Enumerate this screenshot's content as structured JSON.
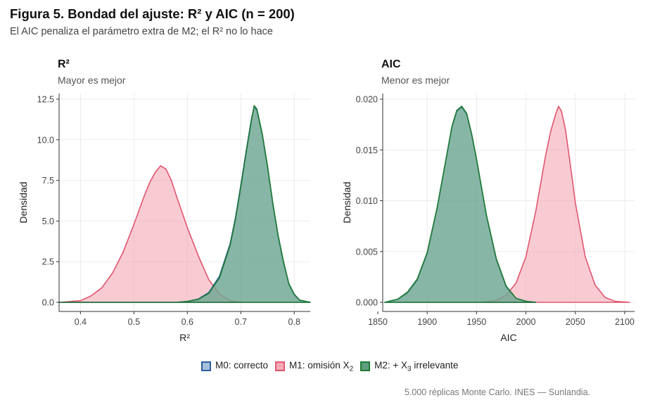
{
  "figure": {
    "title": "Figura 5. Bondad del ajuste: R² y AIC (n = 200)",
    "subtitle": "El AIC penaliza el parámetro extra de M2; el R² no lo hace",
    "caption": "5.000 réplicas Monte Carlo. INES — Sunlandia."
  },
  "legend": {
    "items": [
      {
        "key": "m0",
        "pre": "M0: correcto",
        "sub": "",
        "post": ""
      },
      {
        "key": "m1",
        "pre": "M1: omisión X",
        "sub": "2",
        "post": ""
      },
      {
        "key": "m2",
        "pre": "M2: + X",
        "sub": "3",
        "post": " irrelevante"
      }
    ]
  },
  "colors": {
    "m0": {
      "line": "#2c5f9e",
      "fill": "#a8bfdc"
    },
    "m1": {
      "line": "#e0566e",
      "fill": "#f4a9b6"
    },
    "m2": {
      "line": "#1e7a35",
      "fill": "#5f9f80"
    },
    "grid": "#ebebeb",
    "axis": "#333333"
  },
  "chart_data": [
    {
      "type": "area",
      "title": "R²",
      "subtitle": "Mayor es mejor",
      "xlabel": "R²",
      "ylabel": "Densidad",
      "xlim": [
        0.36,
        0.83
      ],
      "ylim": [
        0,
        12.5
      ],
      "xticks": [
        0.4,
        0.5,
        0.6,
        0.7,
        0.8
      ],
      "xtick_labels": [
        "0.4",
        "0.5",
        "0.6",
        "0.7",
        "0.8"
      ],
      "yticks": [
        0,
        2.5,
        5,
        7.5,
        10,
        12.5
      ],
      "ytick_labels": [
        "0.0",
        "2.5",
        "5.0",
        "7.5",
        "10.0",
        "12.5"
      ],
      "series": [
        {
          "key": "m1",
          "x": [
            0.36,
            0.4,
            0.42,
            0.44,
            0.46,
            0.48,
            0.5,
            0.52,
            0.53,
            0.54,
            0.55,
            0.56,
            0.57,
            0.58,
            0.6,
            0.62,
            0.64,
            0.66,
            0.68,
            0.7
          ],
          "y": [
            0.0,
            0.1,
            0.4,
            0.9,
            1.8,
            3.1,
            4.8,
            6.6,
            7.4,
            8.0,
            8.4,
            8.2,
            7.5,
            6.5,
            4.6,
            2.9,
            1.4,
            0.5,
            0.1,
            0.0
          ]
        },
        {
          "key": "m0",
          "x": [
            0.36,
            0.58,
            0.6,
            0.62,
            0.64,
            0.66,
            0.68,
            0.69,
            0.7,
            0.71,
            0.72,
            0.725,
            0.73,
            0.74,
            0.75,
            0.76,
            0.77,
            0.78,
            0.79,
            0.8,
            0.81,
            0.83
          ],
          "y": [
            0.0,
            0.0,
            0.06,
            0.2,
            0.6,
            1.6,
            3.6,
            5.2,
            7.2,
            9.3,
            11.3,
            12.0,
            11.8,
            10.3,
            8.3,
            6.0,
            4.0,
            2.4,
            1.1,
            0.45,
            0.12,
            0.0
          ]
        },
        {
          "key": "m2",
          "x": [
            0.36,
            0.58,
            0.6,
            0.62,
            0.64,
            0.66,
            0.68,
            0.69,
            0.7,
            0.71,
            0.72,
            0.725,
            0.73,
            0.74,
            0.75,
            0.76,
            0.77,
            0.78,
            0.79,
            0.8,
            0.81,
            0.83
          ],
          "y": [
            0.0,
            0.0,
            0.05,
            0.18,
            0.55,
            1.5,
            3.5,
            5.1,
            7.1,
            9.2,
            11.2,
            12.1,
            11.9,
            10.4,
            8.4,
            6.1,
            4.1,
            2.5,
            1.15,
            0.5,
            0.14,
            0.0
          ]
        }
      ]
    },
    {
      "type": "area",
      "title": "AIC",
      "subtitle": "Menor es mejor",
      "xlabel": "AIC",
      "ylabel": "Densidad",
      "xlim": [
        1855,
        2110
      ],
      "ylim": [
        0,
        0.02
      ],
      "xticks": [
        1850,
        1900,
        1950,
        2000,
        2050,
        2100
      ],
      "xtick_labels": [
        "1850",
        "1900",
        "1950",
        "2000",
        "2050",
        "2100"
      ],
      "yticks": [
        0,
        0.005,
        0.01,
        0.015,
        0.02
      ],
      "ytick_labels": [
        "0.000",
        "0.005",
        "0.010",
        "0.015",
        "0.020"
      ],
      "series": [
        {
          "key": "m1",
          "x": [
            1955,
            1970,
            1980,
            1990,
            2000,
            2010,
            2020,
            2025,
            2030,
            2033,
            2036,
            2040,
            2045,
            2050,
            2060,
            2070,
            2080,
            2090,
            2105
          ],
          "y": [
            0.0,
            0.0002,
            0.0007,
            0.0019,
            0.0045,
            0.009,
            0.0145,
            0.0168,
            0.0185,
            0.0193,
            0.0188,
            0.017,
            0.0135,
            0.0098,
            0.0045,
            0.0017,
            0.0005,
            0.0001,
            0.0
          ]
        },
        {
          "key": "m0",
          "x": [
            1857,
            1870,
            1880,
            1890,
            1900,
            1910,
            1920,
            1925,
            1930,
            1935,
            1940,
            1945,
            1950,
            1960,
            1970,
            1980,
            1990,
            2000,
            2010
          ],
          "y": [
            0.0,
            0.0003,
            0.0009,
            0.0022,
            0.0048,
            0.0092,
            0.0145,
            0.0172,
            0.0188,
            0.0192,
            0.0185,
            0.0165,
            0.014,
            0.0085,
            0.0042,
            0.0015,
            0.0004,
            0.0001,
            0.0
          ]
        },
        {
          "key": "m2",
          "x": [
            1857,
            1870,
            1880,
            1890,
            1900,
            1910,
            1920,
            1925,
            1930,
            1935,
            1940,
            1945,
            1950,
            1960,
            1970,
            1980,
            1990,
            2000,
            2010
          ],
          "y": [
            0.0,
            0.0003,
            0.001,
            0.0023,
            0.0049,
            0.0093,
            0.0146,
            0.0173,
            0.0189,
            0.0193,
            0.0186,
            0.0166,
            0.0141,
            0.0086,
            0.0043,
            0.0016,
            0.0004,
            0.0001,
            0.0
          ]
        }
      ]
    }
  ]
}
